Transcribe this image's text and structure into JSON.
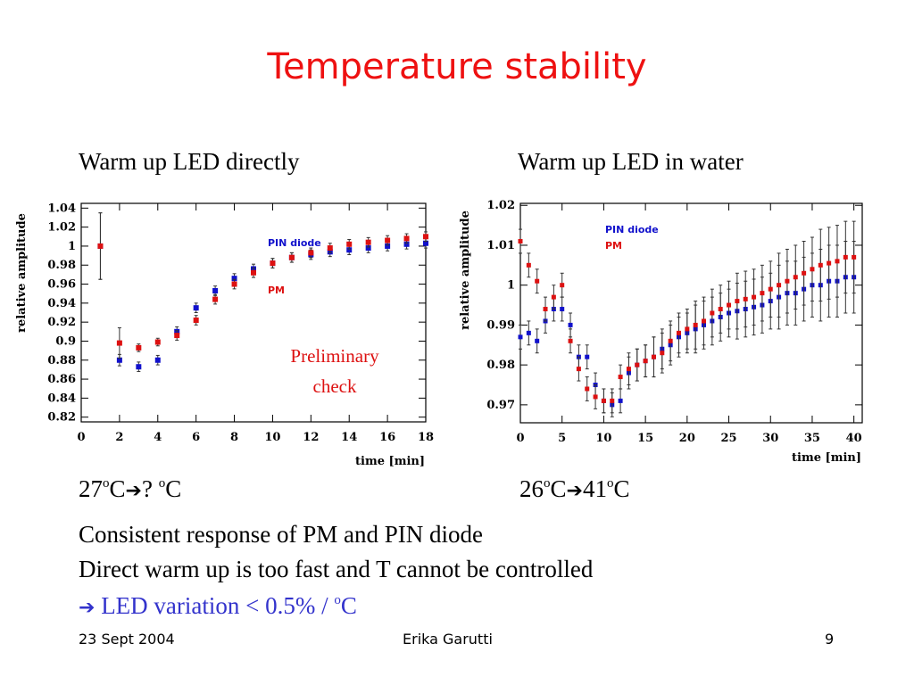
{
  "title": "Temperature stability",
  "left_heading": "Warm up LED directly",
  "right_heading": "Warm up LED in water",
  "left_temp": {
    "start": "27",
    "o1": "o",
    "c1": "C",
    "arrow": "➔",
    "mid": "? ",
    "o2": "o",
    "c2": "C"
  },
  "right_temp": {
    "start": "26",
    "o1": "o",
    "c1": "C",
    "arrow": "➔",
    "mid": "41",
    "o2": "o",
    "c2": "C"
  },
  "bullets": {
    "line1": "Consistent response of PM and PIN diode",
    "line2": "Direct warm up is too fast and T cannot be controlled",
    "line3_arrow": "➔",
    "line3_text": " LED variation  < 0.5% / ",
    "line3_o": "o",
    "line3_c": "C"
  },
  "footer": {
    "date": "23 Sept 2004",
    "author": "Erika Garutti",
    "page": "9"
  },
  "colors": {
    "title": "#ee1111",
    "pin": "#1111cc",
    "pm": "#dd1111",
    "highlight": "#3333cc"
  },
  "chart_data": [
    {
      "type": "scatter",
      "xlabel": "time [min]",
      "ylabel": "relative amplitude",
      "xlim": [
        0,
        18
      ],
      "ylim": [
        0.815,
        1.045
      ],
      "xticks": [
        0,
        2,
        4,
        6,
        8,
        10,
        12,
        14,
        16,
        18
      ],
      "yticks": [
        0.82,
        0.84,
        0.86,
        0.88,
        0.9,
        0.92,
        0.94,
        0.96,
        0.98,
        1,
        1.02,
        1.04
      ],
      "ytick_labels": [
        "0.82",
        "0.84",
        "0.86",
        "0.88",
        "0.9",
        "0.92",
        "0.94",
        "0.96",
        "0.98",
        "1",
        "1.02",
        "1.04"
      ],
      "annotation": "Preliminary check",
      "legend": [
        "PIN diode",
        "PM"
      ],
      "legend_placement": "top-right",
      "series": [
        {
          "name": "PIN diode",
          "color": "#1111cc",
          "x": [
            1,
            2,
            3,
            4,
            5,
            6,
            7,
            8,
            9,
            10,
            11,
            12,
            13,
            14,
            15,
            16,
            17,
            18
          ],
          "y": [
            1.0,
            0.88,
            0.873,
            0.88,
            0.91,
            0.935,
            0.953,
            0.966,
            0.976,
            0.982,
            0.988,
            0.991,
            0.994,
            0.996,
            0.998,
            1.0,
            1.002,
            1.003
          ],
          "err": [
            0.035,
            0.006,
            0.005,
            0.005,
            0.005,
            0.005,
            0.005,
            0.005,
            0.005,
            0.005,
            0.005,
            0.005,
            0.005,
            0.005,
            0.005,
            0.005,
            0.005,
            0.005
          ]
        },
        {
          "name": "PM",
          "color": "#dd1111",
          "x": [
            1,
            2,
            3,
            4,
            5,
            6,
            7,
            8,
            9,
            10,
            11,
            12,
            13,
            14,
            15,
            16,
            17,
            18
          ],
          "y": [
            1.0,
            0.898,
            0.893,
            0.899,
            0.906,
            0.922,
            0.944,
            0.96,
            0.972,
            0.982,
            0.988,
            0.993,
            0.998,
            1.002,
            1.004,
            1.006,
            1.008,
            1.01
          ],
          "err": [
            0.035,
            0.016,
            0.004,
            0.004,
            0.005,
            0.005,
            0.005,
            0.005,
            0.005,
            0.005,
            0.005,
            0.005,
            0.005,
            0.005,
            0.005,
            0.005,
            0.005,
            0.005
          ]
        }
      ]
    },
    {
      "type": "scatter",
      "xlabel": "time [min]",
      "ylabel": "relative amplitude",
      "xlim": [
        0,
        41
      ],
      "ylim": [
        0.9655,
        1.0205
      ],
      "xticks": [
        0,
        5,
        10,
        15,
        20,
        25,
        30,
        35,
        40
      ],
      "yticks": [
        0.97,
        0.98,
        0.99,
        1,
        1.01,
        1.02
      ],
      "ytick_labels": [
        "0.97",
        "0.98",
        "0.99",
        "1",
        "1.01",
        "1.02"
      ],
      "legend": [
        "PIN diode",
        "PM"
      ],
      "legend_placement": "top-left",
      "series": [
        {
          "name": "PIN diode",
          "color": "#1111cc",
          "x": [
            0,
            1,
            2,
            3,
            4,
            5,
            6,
            7,
            8,
            9,
            10,
            11,
            12,
            13,
            14,
            15,
            16,
            17,
            18,
            19,
            20,
            21,
            22,
            23,
            24,
            25,
            26,
            27,
            28,
            29,
            30,
            31,
            32,
            33,
            34,
            35,
            36,
            37,
            38,
            39,
            40
          ],
          "y": [
            0.987,
            0.988,
            0.986,
            0.991,
            0.994,
            0.994,
            0.99,
            0.982,
            0.982,
            0.975,
            0.971,
            0.97,
            0.971,
            0.978,
            0.98,
            0.981,
            0.982,
            0.984,
            0.985,
            0.987,
            0.988,
            0.989,
            0.99,
            0.991,
            0.992,
            0.993,
            0.9935,
            0.994,
            0.9945,
            0.995,
            0.996,
            0.997,
            0.998,
            0.998,
            0.999,
            1.0,
            1.0,
            1.001,
            1.001,
            1.002,
            1.002
          ],
          "err": [
            0.003,
            0.003,
            0.003,
            0.003,
            0.003,
            0.003,
            0.003,
            0.003,
            0.003,
            0.003,
            0.003,
            0.003,
            0.003,
            0.004,
            0.004,
            0.004,
            0.005,
            0.005,
            0.005,
            0.005,
            0.005,
            0.006,
            0.006,
            0.006,
            0.006,
            0.006,
            0.007,
            0.007,
            0.007,
            0.007,
            0.007,
            0.008,
            0.008,
            0.008,
            0.008,
            0.008,
            0.009,
            0.009,
            0.009,
            0.009,
            0.009
          ]
        },
        {
          "name": "PM",
          "color": "#dd1111",
          "x": [
            0,
            1,
            2,
            3,
            4,
            5,
            6,
            7,
            8,
            9,
            10,
            11,
            12,
            13,
            14,
            15,
            16,
            17,
            18,
            19,
            20,
            21,
            22,
            23,
            24,
            25,
            26,
            27,
            28,
            29,
            30,
            31,
            32,
            33,
            34,
            35,
            36,
            37,
            38,
            39,
            40
          ],
          "y": [
            1.011,
            1.005,
            1.001,
            0.994,
            0.997,
            1.0,
            0.986,
            0.979,
            0.974,
            0.972,
            0.971,
            0.971,
            0.977,
            0.979,
            0.98,
            0.981,
            0.982,
            0.983,
            0.986,
            0.988,
            0.989,
            0.99,
            0.991,
            0.993,
            0.994,
            0.995,
            0.996,
            0.9965,
            0.997,
            0.998,
            0.999,
            1.0,
            1.001,
            1.002,
            1.003,
            1.004,
            1.005,
            1.0055,
            1.006,
            1.007,
            1.007
          ],
          "err": [
            0.003,
            0.003,
            0.003,
            0.003,
            0.003,
            0.003,
            0.003,
            0.003,
            0.003,
            0.003,
            0.003,
            0.003,
            0.003,
            0.004,
            0.004,
            0.004,
            0.005,
            0.005,
            0.005,
            0.005,
            0.005,
            0.006,
            0.006,
            0.006,
            0.006,
            0.006,
            0.007,
            0.007,
            0.007,
            0.007,
            0.007,
            0.008,
            0.008,
            0.008,
            0.008,
            0.008,
            0.009,
            0.009,
            0.009,
            0.009,
            0.009
          ]
        }
      ]
    }
  ]
}
